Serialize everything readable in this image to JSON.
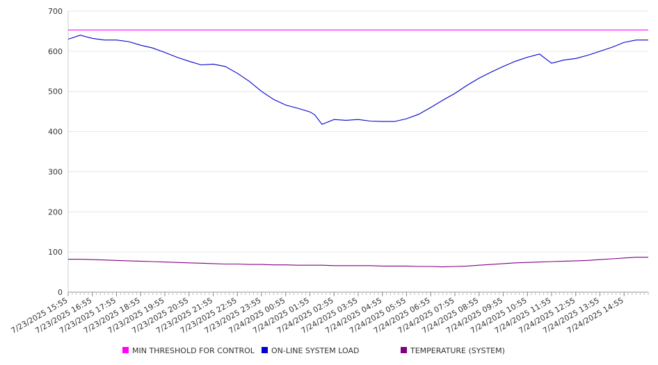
{
  "chart_data": {
    "type": "line",
    "title": "",
    "xlabel": "",
    "ylabel": "",
    "ylim": [
      0,
      700
    ],
    "y_ticks": [
      0,
      100,
      200,
      300,
      400,
      500,
      600,
      700
    ],
    "grid": true,
    "legend_position": "bottom",
    "x_tick_labels": [
      "7/23/2025 15:55",
      "7/23/2025 16:55",
      "7/23/2025 17:55",
      "7/23/2025 18:55",
      "7/23/2025 19:55",
      "7/23/2025 20:55",
      "7/23/2025 21:55",
      "7/23/2025 22:55",
      "7/23/2025 23:55",
      "7/24/2025 00:55",
      "7/24/2025 01:55",
      "7/24/2025 02:55",
      "7/24/2025 03:55",
      "7/24/2025 04:55",
      "7/24/2025 05:55",
      "7/24/2025 06:55",
      "7/24/2025 07:55",
      "7/24/2025 08:55",
      "7/24/2025 09:55",
      "7/24/2025 10:55",
      "7/24/2025 11:55",
      "7/24/2025 12:55",
      "7/24/2025 13:55",
      "7/24/2025 14:55"
    ],
    "x_hours": [
      0,
      0.5,
      1,
      1.5,
      2,
      2.5,
      3,
      3.5,
      4,
      4.5,
      5,
      5.5,
      6,
      6.5,
      7,
      7.5,
      8,
      8.5,
      9,
      9.5,
      10,
      10.2,
      10.5,
      11,
      11.5,
      12,
      12.5,
      13,
      13.5,
      14,
      14.5,
      15,
      15.5,
      16,
      16.5,
      17,
      17.5,
      18,
      18.5,
      19,
      19.5,
      20,
      20.5,
      21,
      21.5,
      22,
      22.5,
      23,
      23.5,
      24
    ],
    "series": [
      {
        "name": "MIN THRESHOLD FOR CONTROL",
        "color": "#ff00ff",
        "values": [
          653,
          653,
          653,
          653,
          653,
          653,
          653,
          653,
          653,
          653,
          653,
          653,
          653,
          653,
          653,
          653,
          653,
          653,
          653,
          653,
          653,
          653,
          653,
          653,
          653,
          653,
          653,
          653,
          653,
          653,
          653,
          653,
          653,
          653,
          653,
          653,
          653,
          653,
          653,
          653,
          653,
          653,
          653,
          653,
          653,
          653,
          653,
          653,
          653,
          653
        ]
      },
      {
        "name": "ON-LINE SYSTEM LOAD",
        "color": "#0000cc",
        "values": [
          630,
          640,
          632,
          628,
          628,
          624,
          615,
          608,
          597,
          585,
          575,
          566,
          568,
          562,
          545,
          525,
          500,
          480,
          466,
          458,
          449,
          442,
          418,
          430,
          428,
          430,
          426,
          425,
          425,
          432,
          443,
          460,
          478,
          495,
          515,
          533,
          548,
          562,
          575,
          585,
          593,
          570,
          578,
          582,
          590,
          600,
          610,
          622,
          628,
          628
        ]
      },
      {
        "name": "TEMPERATURE (SYSTEM)",
        "color": "#800080",
        "values": [
          82,
          82,
          81,
          80,
          79,
          78,
          77,
          76,
          75,
          74,
          73,
          72,
          71,
          70,
          70,
          69,
          69,
          68,
          68,
          67,
          67,
          67,
          67,
          66,
          66,
          66,
          66,
          65,
          65,
          65,
          64,
          64,
          63,
          64,
          65,
          67,
          69,
          71,
          73,
          74,
          75,
          76,
          77,
          78,
          79,
          81,
          83,
          85,
          87,
          87
        ]
      }
    ]
  }
}
